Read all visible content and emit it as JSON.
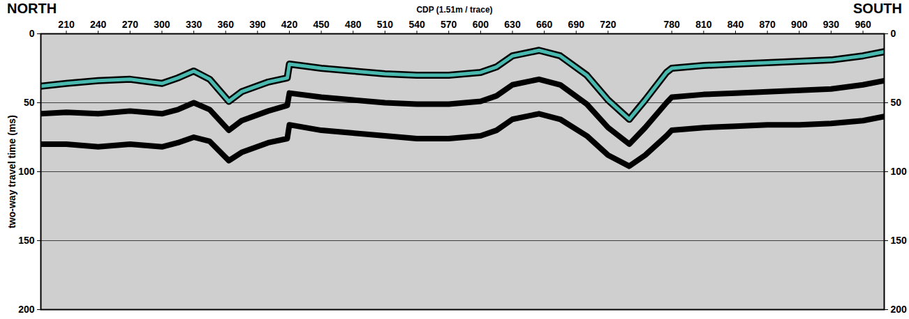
{
  "chart_data": {
    "type": "line",
    "x_label": "CDP (1.51m / trace)",
    "y_label": "two-way travel time (ms)",
    "annotations": [
      "NORTH",
      "SOUTH"
    ],
    "xlim": [
      186,
      980
    ],
    "xticks": [
      210,
      240,
      270,
      300,
      330,
      360,
      390,
      420,
      450,
      480,
      510,
      540,
      570,
      600,
      630,
      660,
      690,
      720,
      780,
      810,
      840,
      870,
      900,
      930,
      960
    ],
    "ylim": [
      0,
      200
    ],
    "yticks": [
      0,
      50,
      100,
      150,
      200
    ],
    "grid": true,
    "x": [
      186,
      210,
      240,
      270,
      300,
      315,
      330,
      345,
      363,
      375,
      400,
      418,
      420,
      450,
      480,
      510,
      540,
      570,
      600,
      615,
      630,
      655,
      675,
      700,
      720,
      740,
      755,
      775,
      780,
      810,
      840,
      870,
      900,
      930,
      960,
      980
    ],
    "series": [
      {
        "color": "#49b9b0",
        "values": [
          38,
          36,
          34,
          33,
          36,
          32,
          27,
          33,
          49,
          42,
          35,
          32,
          22,
          25,
          27,
          29,
          30,
          30,
          28,
          24,
          16,
          12,
          16,
          30,
          48,
          62,
          48,
          28,
          25,
          23,
          22,
          21,
          20,
          19,
          16,
          13
        ]
      },
      {
        "color": "#000000",
        "values": [
          58,
          57,
          58,
          56,
          58,
          55,
          50,
          55,
          70,
          63,
          56,
          52,
          43,
          46,
          48,
          50,
          51,
          51,
          49,
          45,
          37,
          33,
          37,
          51,
          68,
          80,
          68,
          50,
          46,
          44,
          43,
          42,
          41,
          40,
          37,
          34
        ]
      },
      {
        "color": "#000000",
        "values": [
          80,
          80,
          82,
          80,
          82,
          79,
          75,
          78,
          92,
          86,
          79,
          76,
          66,
          70,
          72,
          74,
          76,
          76,
          74,
          70,
          62,
          58,
          62,
          74,
          88,
          96,
          88,
          74,
          70,
          68,
          67,
          66,
          66,
          65,
          63,
          60
        ]
      }
    ]
  }
}
